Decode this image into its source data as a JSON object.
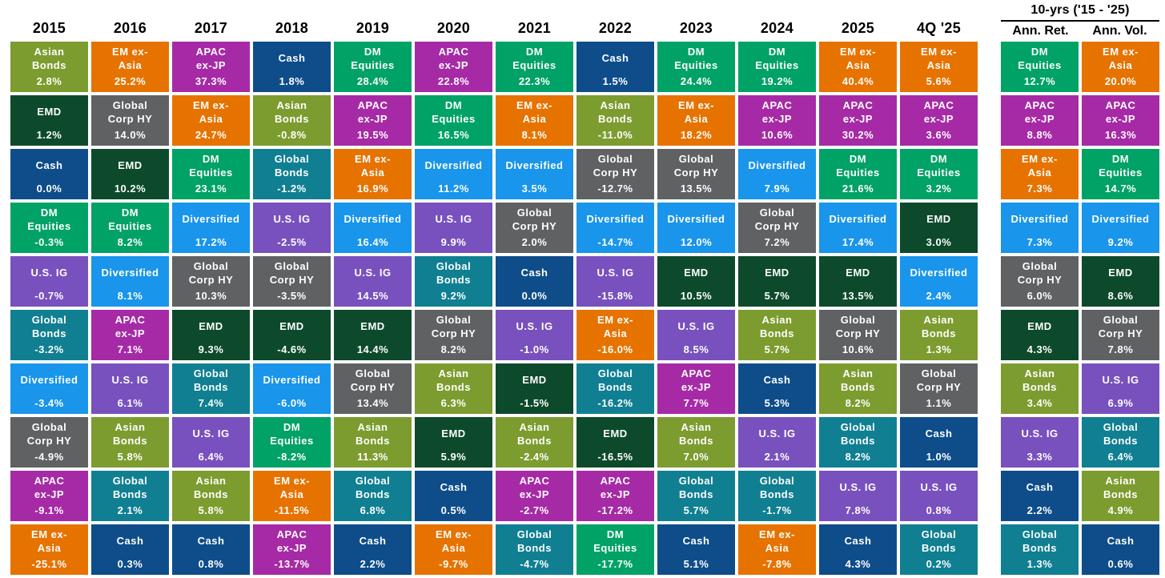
{
  "chart_data": {
    "type": "table",
    "group_header": "10-yrs ('15 - '25)",
    "assets": {
      "asian_bonds": {
        "label": "Asian Bonds",
        "display": "Asian\nBonds",
        "color": "#7D9C2F"
      },
      "em_ex_asia": {
        "label": "EM ex-Asia",
        "display": "EM ex-\nAsia",
        "color": "#E67300"
      },
      "apac_ex_jp": {
        "label": "APAC ex-JP",
        "display": "APAC\nex-JP",
        "color": "#A62AA6"
      },
      "cash": {
        "label": "Cash",
        "display": "Cash",
        "color": "#0E4D8A"
      },
      "dm_equities": {
        "label": "DM Equities",
        "display": "DM\nEquities",
        "color": "#00A266"
      },
      "emd": {
        "label": "EMD",
        "display": "EMD",
        "color": "#0D4A2C"
      },
      "global_corp_hy": {
        "label": "Global Corp HY",
        "display": "Global\nCorp HY",
        "color": "#5F6163"
      },
      "global_bonds": {
        "label": "Global Bonds",
        "display": "Global\nBonds",
        "color": "#107F92"
      },
      "diversified": {
        "label": "Diversified",
        "display": "Diversified",
        "color": "#1995EB"
      },
      "us_ig": {
        "label": "U.S. IG",
        "display": "U.S. IG",
        "color": "#7851BE"
      }
    },
    "columns": [
      {
        "label": "2015",
        "cells": [
          [
            "asian_bonds",
            "2.8%"
          ],
          [
            "emd",
            "1.2%"
          ],
          [
            "cash",
            "0.0%"
          ],
          [
            "dm_equities",
            "-0.3%"
          ],
          [
            "us_ig",
            "-0.7%"
          ],
          [
            "global_bonds",
            "-3.2%"
          ],
          [
            "diversified",
            "-3.4%"
          ],
          [
            "global_corp_hy",
            "-4.9%"
          ],
          [
            "apac_ex_jp",
            "-9.1%"
          ],
          [
            "em_ex_asia",
            "-25.1%"
          ]
        ]
      },
      {
        "label": "2016",
        "cells": [
          [
            "em_ex_asia",
            "25.2%"
          ],
          [
            "global_corp_hy",
            "14.0%"
          ],
          [
            "emd",
            "10.2%"
          ],
          [
            "dm_equities",
            "8.2%"
          ],
          [
            "diversified",
            "8.1%"
          ],
          [
            "apac_ex_jp",
            "7.1%"
          ],
          [
            "us_ig",
            "6.1%"
          ],
          [
            "asian_bonds",
            "5.8%"
          ],
          [
            "global_bonds",
            "2.1%"
          ],
          [
            "cash",
            "0.3%"
          ]
        ]
      },
      {
        "label": "2017",
        "cells": [
          [
            "apac_ex_jp",
            "37.3%"
          ],
          [
            "em_ex_asia",
            "24.7%"
          ],
          [
            "dm_equities",
            "23.1%"
          ],
          [
            "diversified",
            "17.2%"
          ],
          [
            "global_corp_hy",
            "10.3%"
          ],
          [
            "emd",
            "9.3%"
          ],
          [
            "global_bonds",
            "7.4%"
          ],
          [
            "us_ig",
            "6.4%"
          ],
          [
            "asian_bonds",
            "5.8%"
          ],
          [
            "cash",
            "0.8%"
          ]
        ]
      },
      {
        "label": "2018",
        "cells": [
          [
            "cash",
            "1.8%"
          ],
          [
            "asian_bonds",
            "-0.8%"
          ],
          [
            "global_bonds",
            "-1.2%"
          ],
          [
            "us_ig",
            "-2.5%"
          ],
          [
            "global_corp_hy",
            "-3.5%"
          ],
          [
            "emd",
            "-4.6%"
          ],
          [
            "diversified",
            "-6.0%"
          ],
          [
            "dm_equities",
            "-8.2%"
          ],
          [
            "em_ex_asia",
            "-11.5%"
          ],
          [
            "apac_ex_jp",
            "-13.7%"
          ]
        ]
      },
      {
        "label": "2019",
        "cells": [
          [
            "dm_equities",
            "28.4%"
          ],
          [
            "apac_ex_jp",
            "19.5%"
          ],
          [
            "em_ex_asia",
            "16.9%"
          ],
          [
            "diversified",
            "16.4%"
          ],
          [
            "us_ig",
            "14.5%"
          ],
          [
            "emd",
            "14.4%"
          ],
          [
            "global_corp_hy",
            "13.4%"
          ],
          [
            "asian_bonds",
            "11.3%"
          ],
          [
            "global_bonds",
            "6.8%"
          ],
          [
            "cash",
            "2.2%"
          ]
        ]
      },
      {
        "label": "2020",
        "cells": [
          [
            "apac_ex_jp",
            "22.8%"
          ],
          [
            "dm_equities",
            "16.5%"
          ],
          [
            "diversified",
            "11.2%"
          ],
          [
            "us_ig",
            "9.9%"
          ],
          [
            "global_bonds",
            "9.2%"
          ],
          [
            "global_corp_hy",
            "8.2%"
          ],
          [
            "asian_bonds",
            "6.3%"
          ],
          [
            "emd",
            "5.9%"
          ],
          [
            "cash",
            "0.5%"
          ],
          [
            "em_ex_asia",
            "-9.7%"
          ]
        ]
      },
      {
        "label": "2021",
        "cells": [
          [
            "dm_equities",
            "22.3%"
          ],
          [
            "em_ex_asia",
            "8.1%"
          ],
          [
            "diversified",
            "3.5%"
          ],
          [
            "global_corp_hy",
            "2.0%"
          ],
          [
            "cash",
            "0.0%"
          ],
          [
            "us_ig",
            "-1.0%"
          ],
          [
            "emd",
            "-1.5%"
          ],
          [
            "asian_bonds",
            "-2.4%"
          ],
          [
            "apac_ex_jp",
            "-2.7%"
          ],
          [
            "global_bonds",
            "-4.7%"
          ]
        ]
      },
      {
        "label": "2022",
        "cells": [
          [
            "cash",
            "1.5%"
          ],
          [
            "asian_bonds",
            "-11.0%"
          ],
          [
            "global_corp_hy",
            "-12.7%"
          ],
          [
            "diversified",
            "-14.7%"
          ],
          [
            "us_ig",
            "-15.8%"
          ],
          [
            "em_ex_asia",
            "-16.0%"
          ],
          [
            "global_bonds",
            "-16.2%"
          ],
          [
            "emd",
            "-16.5%"
          ],
          [
            "apac_ex_jp",
            "-17.2%"
          ],
          [
            "dm_equities",
            "-17.7%"
          ]
        ]
      },
      {
        "label": "2023",
        "cells": [
          [
            "dm_equities",
            "24.4%"
          ],
          [
            "em_ex_asia",
            "18.2%"
          ],
          [
            "global_corp_hy",
            "13.5%"
          ],
          [
            "diversified",
            "12.0%"
          ],
          [
            "emd",
            "10.5%"
          ],
          [
            "us_ig",
            "8.5%"
          ],
          [
            "apac_ex_jp",
            "7.7%"
          ],
          [
            "asian_bonds",
            "7.0%"
          ],
          [
            "global_bonds",
            "5.7%"
          ],
          [
            "cash",
            "5.1%"
          ]
        ]
      },
      {
        "label": "2024",
        "cells": [
          [
            "dm_equities",
            "19.2%"
          ],
          [
            "apac_ex_jp",
            "10.6%"
          ],
          [
            "diversified",
            "7.9%"
          ],
          [
            "global_corp_hy",
            "7.2%"
          ],
          [
            "emd",
            "5.7%"
          ],
          [
            "asian_bonds",
            "5.7%"
          ],
          [
            "cash",
            "5.3%"
          ],
          [
            "us_ig",
            "2.1%"
          ],
          [
            "global_bonds",
            "-1.7%"
          ],
          [
            "em_ex_asia",
            "-7.8%"
          ]
        ]
      },
      {
        "label": "2025",
        "cells": [
          [
            "em_ex_asia",
            "40.4%"
          ],
          [
            "apac_ex_jp",
            "30.2%"
          ],
          [
            "dm_equities",
            "21.6%"
          ],
          [
            "diversified",
            "17.4%"
          ],
          [
            "emd",
            "13.5%"
          ],
          [
            "global_corp_hy",
            "10.6%"
          ],
          [
            "asian_bonds",
            "8.2%"
          ],
          [
            "global_bonds",
            "8.2%"
          ],
          [
            "us_ig",
            "7.8%"
          ],
          [
            "cash",
            "4.3%"
          ]
        ]
      },
      {
        "label": "4Q '25",
        "cells": [
          [
            "em_ex_asia",
            "5.6%"
          ],
          [
            "apac_ex_jp",
            "3.6%"
          ],
          [
            "dm_equities",
            "3.2%"
          ],
          [
            "emd",
            "3.0%"
          ],
          [
            "diversified",
            "2.4%"
          ],
          [
            "asian_bonds",
            "1.3%"
          ],
          [
            "global_corp_hy",
            "1.1%"
          ],
          [
            "cash",
            "1.0%"
          ],
          [
            "us_ig",
            "0.8%"
          ],
          [
            "global_bonds",
            "0.2%"
          ]
        ]
      },
      {
        "label": "Ann. Ret.",
        "cells": [
          [
            "dm_equities",
            "12.7%"
          ],
          [
            "apac_ex_jp",
            "8.8%"
          ],
          [
            "em_ex_asia",
            "7.3%"
          ],
          [
            "diversified",
            "7.3%"
          ],
          [
            "global_corp_hy",
            "6.0%"
          ],
          [
            "emd",
            "4.3%"
          ],
          [
            "asian_bonds",
            "3.4%"
          ],
          [
            "us_ig",
            "3.3%"
          ],
          [
            "cash",
            "2.2%"
          ],
          [
            "global_bonds",
            "1.3%"
          ]
        ]
      },
      {
        "label": "Ann. Vol.",
        "cells": [
          [
            "em_ex_asia",
            "20.0%"
          ],
          [
            "apac_ex_jp",
            "16.3%"
          ],
          [
            "dm_equities",
            "14.7%"
          ],
          [
            "diversified",
            "9.2%"
          ],
          [
            "emd",
            "8.6%"
          ],
          [
            "global_corp_hy",
            "7.8%"
          ],
          [
            "us_ig",
            "6.9%"
          ],
          [
            "global_bonds",
            "6.4%"
          ],
          [
            "asian_bonds",
            "4.9%"
          ],
          [
            "cash",
            "0.6%"
          ]
        ]
      }
    ]
  }
}
